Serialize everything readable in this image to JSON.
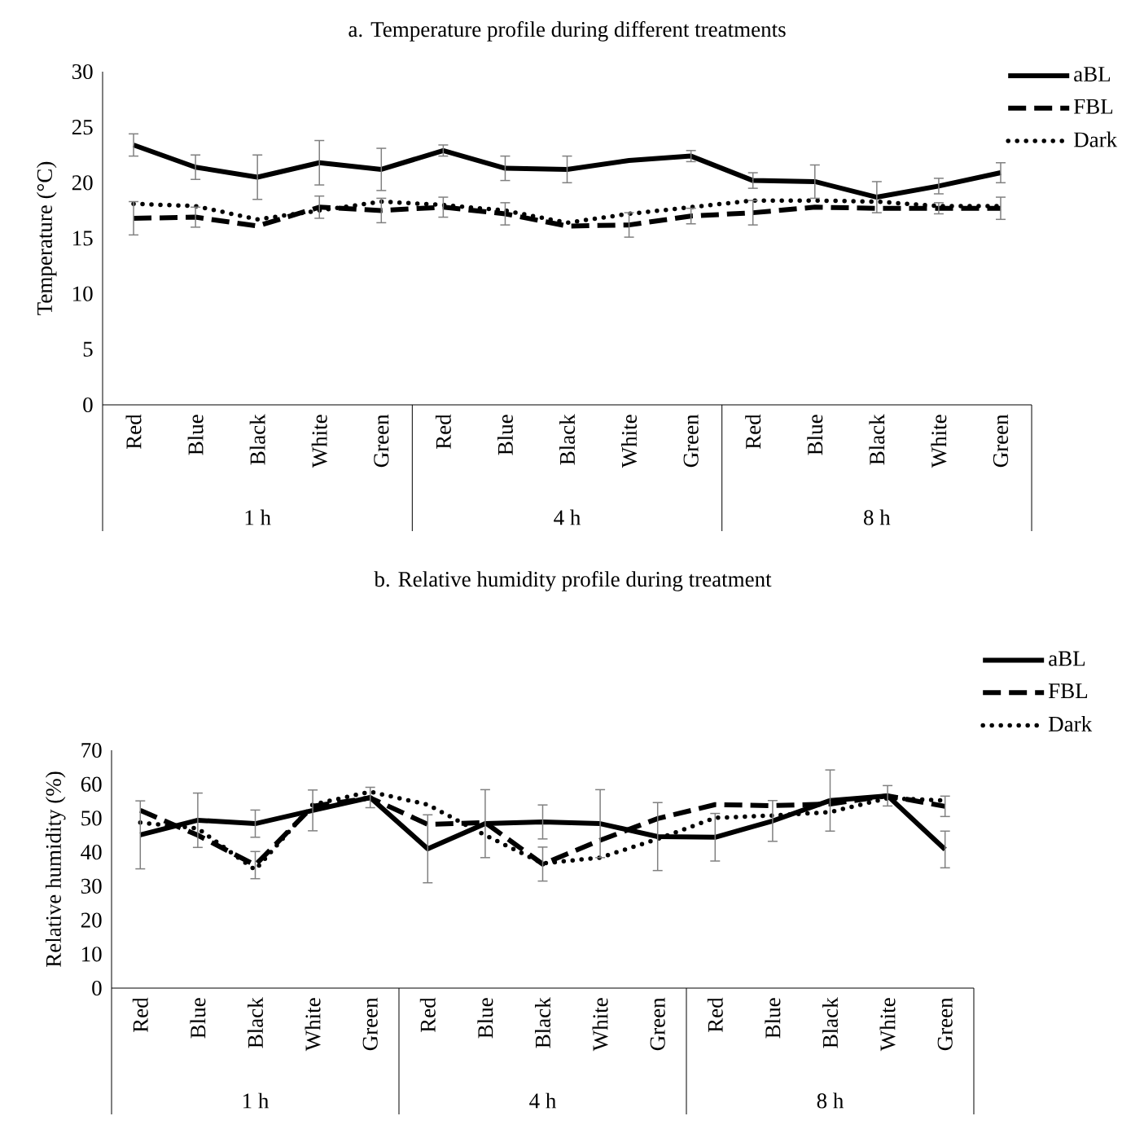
{
  "chart_data": [
    {
      "type": "line",
      "title": "a. Temperature profile during different treatments",
      "ylabel": "Temperature (°C)",
      "categories": [
        "Red",
        "Blue",
        "Black",
        "White",
        "Green",
        "Red",
        "Blue",
        "Black",
        "White",
        "Green",
        "Red",
        "Blue",
        "Black",
        "White",
        "Green"
      ],
      "annotations": [
        "1 h",
        "4 h",
        "8 h"
      ],
      "series": [
        {
          "name": "aBL",
          "color": "#000000",
          "line_style": "solid",
          "values": [
            23.4,
            21.4,
            20.5,
            21.8,
            21.2,
            22.9,
            21.3,
            21.2,
            22.0,
            22.4,
            20.2,
            20.1,
            18.7,
            19.7,
            20.9
          ],
          "errors": [
            1.0,
            1.1,
            2.0,
            2.0,
            1.9,
            0.5,
            1.1,
            1.2,
            null,
            0.5,
            0.7,
            1.5,
            1.4,
            0.7,
            0.9
          ]
        },
        {
          "name": "FBL",
          "color": "#000000",
          "line_style": "dashed",
          "values": [
            16.8,
            16.9,
            16.1,
            17.8,
            17.5,
            17.8,
            17.2,
            16.1,
            16.2,
            17.0,
            17.3,
            17.8,
            17.7,
            17.7,
            17.7
          ],
          "errors": [
            1.5,
            0.9,
            null,
            1.0,
            1.1,
            0.9,
            1.0,
            null,
            1.1,
            0.7,
            1.1,
            null,
            null,
            0.5,
            1.0
          ]
        },
        {
          "name": "Dark",
          "color": "#000000",
          "line_style": "dotted",
          "values": [
            18.1,
            17.9,
            16.7,
            17.5,
            18.3,
            18.0,
            17.5,
            16.4,
            17.2,
            17.8,
            18.4,
            18.4,
            18.3,
            17.9,
            17.9
          ]
        }
      ],
      "ylim": [
        0,
        30
      ],
      "yticks": [
        0,
        5,
        10,
        15,
        20,
        25,
        30
      ],
      "legend": "top right"
    },
    {
      "type": "line",
      "title": "b. Relative humidity profile during treatment",
      "ylabel": "Relative humidity (%)",
      "categories": [
        "Red",
        "Blue",
        "Black",
        "White",
        "Green",
        "Red",
        "Blue",
        "Black",
        "White",
        "Green",
        "Red",
        "Blue",
        "Black",
        "White",
        "Green"
      ],
      "annotations": [
        "1 h",
        "4 h",
        "8 h"
      ],
      "series": [
        {
          "name": "aBL",
          "color": "#000000",
          "line_style": "solid",
          "values": [
            45.1,
            49.4,
            48.4,
            52.3,
            56.1,
            41.0,
            48.4,
            48.9,
            48.4,
            44.6,
            44.4,
            49.2,
            55.2,
            56.6,
            40.8
          ],
          "errors": [
            10,
            8,
            4,
            6,
            3,
            10,
            10,
            5,
            10,
            10,
            7,
            6,
            9,
            3,
            5.4
          ]
        },
        {
          "name": "FBL",
          "color": "#000000",
          "line_style": "dashed",
          "values": [
            52.3,
            45.0,
            36.2,
            53.5,
            56.0,
            48.2,
            48.7,
            36.5,
            43.5,
            49.9,
            54.0,
            53.7,
            54.2,
            56.6,
            53.5
          ],
          "errors": [
            null,
            null,
            4,
            null,
            null,
            null,
            null,
            5,
            null,
            null,
            null,
            null,
            null,
            null,
            3
          ]
        },
        {
          "name": "Dark",
          "color": "#000000",
          "line_style": "dotted",
          "values": [
            48.7,
            47.0,
            34.8,
            54.0,
            57.8,
            54.0,
            45.0,
            36.7,
            38.4,
            43.9,
            50.1,
            50.8,
            51.8,
            55.9,
            55.2
          ]
        }
      ],
      "ylim": [
        0,
        70
      ],
      "yticks": [
        0,
        10,
        20,
        30,
        40,
        50,
        60,
        70
      ],
      "legend": "top right"
    }
  ]
}
